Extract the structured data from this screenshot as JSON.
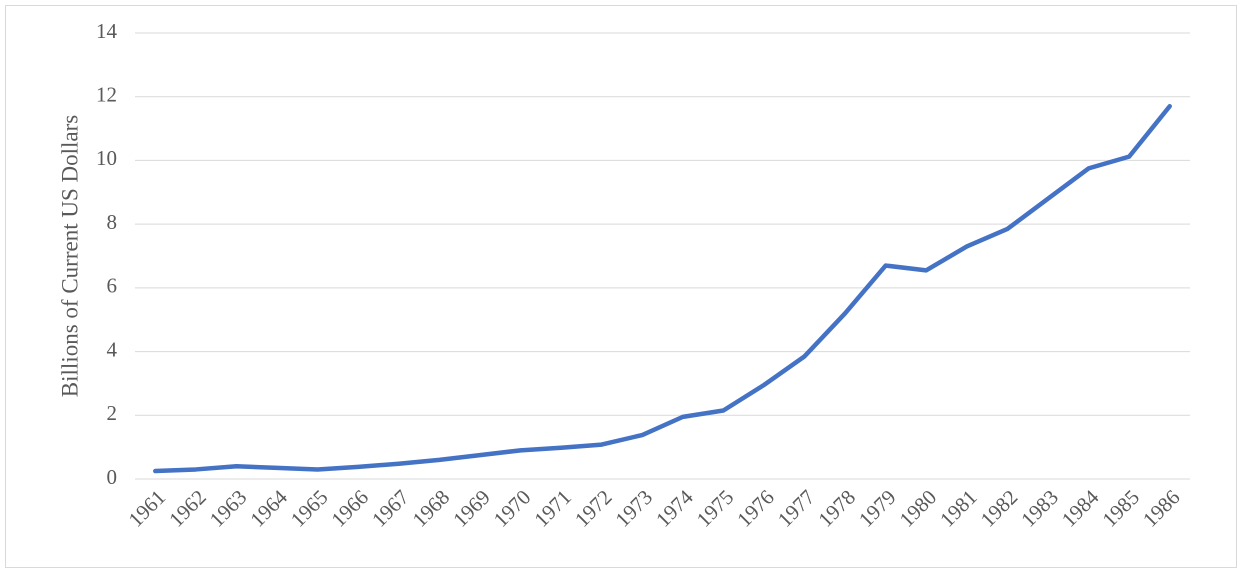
{
  "chart_data": {
    "type": "line",
    "y_label": "Billions of Current US Dollars",
    "categories": [
      "1961",
      "1962",
      "1963",
      "1964",
      "1965",
      "1966",
      "1967",
      "1968",
      "1969",
      "1970",
      "1971",
      "1972",
      "1973",
      "1974",
      "1975",
      "1976",
      "1977",
      "1978",
      "1979",
      "1980",
      "1981",
      "1982",
      "1983",
      "1984",
      "1985",
      "1986"
    ],
    "values": [
      0.25,
      0.3,
      0.4,
      0.35,
      0.3,
      0.38,
      0.48,
      0.6,
      0.75,
      0.9,
      0.98,
      1.08,
      1.38,
      1.95,
      2.15,
      2.95,
      3.85,
      5.2,
      6.7,
      6.55,
      7.3,
      7.85,
      8.8,
      9.75,
      10.12,
      11.7
    ],
    "color": "#4472c4",
    "ylim": [
      0,
      14
    ],
    "yticks": [
      0,
      2,
      4,
      6,
      8,
      10,
      12,
      14
    ],
    "grid": true
  }
}
